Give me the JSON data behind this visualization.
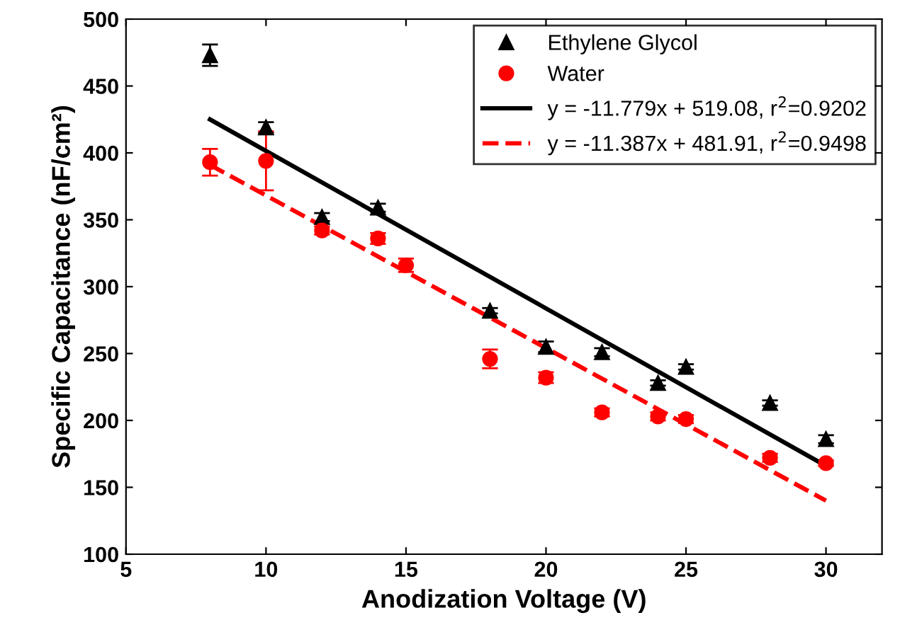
{
  "chart_data": {
    "type": "scatter",
    "xlabel": "Anodization Voltage (V)",
    "ylabel": "Specific Capacitance (nF/cm²)",
    "xlim": [
      5,
      32
    ],
    "ylim": [
      100,
      500
    ],
    "xticks": [
      5,
      10,
      15,
      20,
      25,
      30
    ],
    "yticks": [
      100,
      150,
      200,
      250,
      300,
      350,
      400,
      450,
      500
    ],
    "legend": "top right",
    "grid": false,
    "series": [
      {
        "name": "Ethylene Glycol",
        "marker": "triangle",
        "color": "#000000",
        "x": [
          8,
          10,
          12,
          14,
          18,
          20,
          22,
          24,
          25,
          28,
          30
        ],
        "values": [
          473,
          419,
          352,
          359,
          282,
          255,
          251,
          228,
          240,
          213,
          186
        ],
        "errors": [
          8,
          4,
          3,
          3,
          2,
          4,
          3,
          2,
          2,
          2,
          3
        ]
      },
      {
        "name": "Water",
        "marker": "circle",
        "color": "#ff0000",
        "x": [
          8,
          10,
          12,
          14,
          15,
          18,
          20,
          22,
          24,
          25,
          28,
          30
        ],
        "values": [
          393,
          394,
          342,
          336,
          316,
          246,
          232,
          206,
          203,
          201,
          172,
          168
        ],
        "errors": [
          10,
          22,
          3,
          4,
          5,
          7,
          4,
          3,
          3,
          3,
          3,
          2
        ]
      },
      {
        "name": "y = -11.779x + 519.08, r$^{2}$=0.9202",
        "type": "line",
        "line_style": "solid",
        "color": "#000000",
        "x": [
          8,
          30
        ],
        "values": [
          425,
          166
        ]
      },
      {
        "name": "y = -11.387x + 481.91, r$^{2}$=0.9498",
        "type": "line",
        "line_style": "dashed",
        "color": "#ff0000",
        "x": [
          8,
          30
        ],
        "values": [
          391,
          140
        ]
      }
    ]
  }
}
